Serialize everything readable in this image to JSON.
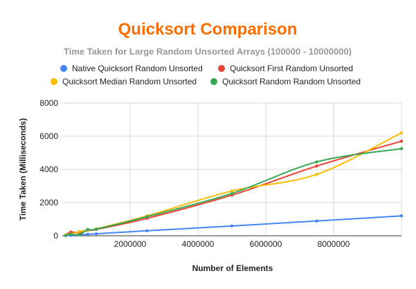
{
  "chart_data": {
    "type": "line",
    "title": "Quicksort Comparison",
    "subtitle": "Time Taken for Large Random Unsorted Arrays (100000 - 10000000)",
    "xlabel": "Number of Elements",
    "ylabel": "Time Taken (Milliseconds)",
    "xlim": [
      0,
      10000000
    ],
    "ylim": [
      0,
      8000
    ],
    "x_ticks": [
      2000000,
      4000000,
      6000000,
      8000000
    ],
    "x_tick_labels": [
      "2000000",
      "4000000",
      "6000000",
      "8000000"
    ],
    "y_ticks": [
      0,
      2000,
      4000,
      6000,
      8000
    ],
    "y_tick_labels": [
      "0",
      "2000",
      "4000",
      "6000",
      "8000"
    ],
    "grid": true,
    "legend_position": "top",
    "series": [
      {
        "name": "Native Quicksort Random Unsorted",
        "color": "#4285F4",
        "points": [
          [
            100000,
            10
          ],
          [
            250000,
            30
          ],
          [
            500000,
            60
          ],
          [
            750000,
            90
          ],
          [
            1000000,
            120
          ],
          [
            2500000,
            300
          ],
          [
            5000000,
            590
          ],
          [
            7500000,
            890
          ],
          [
            10000000,
            1200
          ]
        ]
      },
      {
        "name": "Quicksort First Random Unsorted",
        "color": "#EA4335",
        "points": [
          [
            100000,
            50
          ],
          [
            250000,
            220
          ],
          [
            500000,
            180
          ],
          [
            750000,
            330
          ],
          [
            1000000,
            380
          ],
          [
            2500000,
            1050
          ],
          [
            5000000,
            2450
          ],
          [
            7500000,
            4200
          ],
          [
            10000000,
            5700
          ]
        ]
      },
      {
        "name": "Quicksort Median Random Unsorted",
        "color": "#FBBC04",
        "points": [
          [
            100000,
            60
          ],
          [
            250000,
            120
          ],
          [
            500000,
            250
          ],
          [
            750000,
            350
          ],
          [
            1000000,
            420
          ],
          [
            2500000,
            1200
          ],
          [
            5000000,
            2700
          ],
          [
            7500000,
            3700
          ],
          [
            10000000,
            6200
          ]
        ]
      },
      {
        "name": "Quicksort Random Random Unsorted",
        "color": "#34A853",
        "points": [
          [
            100000,
            20
          ],
          [
            250000,
            100
          ],
          [
            500000,
            60
          ],
          [
            750000,
            380
          ],
          [
            1000000,
            400
          ],
          [
            2500000,
            1150
          ],
          [
            5000000,
            2550
          ],
          [
            7500000,
            4450
          ],
          [
            10000000,
            5250
          ]
        ]
      }
    ]
  },
  "colors": {
    "title": "#FF6D01",
    "subtitle": "#999999",
    "grid": "#D9D9D9",
    "axis": "#333333"
  }
}
